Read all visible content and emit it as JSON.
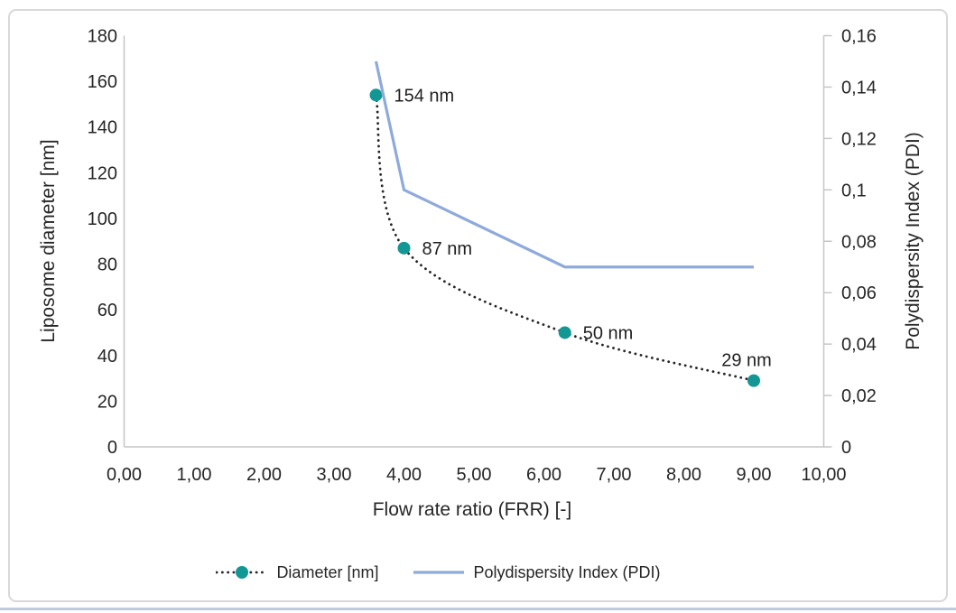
{
  "figure": {
    "background": "#FFFFFF",
    "border_color": "#D8D8D8",
    "bottom_divider_color": "#BECBDD"
  },
  "chart_data": {
    "type": "line",
    "title": "",
    "xlabel": "Flow rate ratio (FRR) [-]",
    "ylabel_left": "Liposome diameter [nm]",
    "ylabel_right": "Polydispersity Index (PDI)",
    "x_range": [
      0,
      10
    ],
    "x_tick_labels": [
      "0,00",
      "1,00",
      "2,00",
      "3,00",
      "4,00",
      "5,00",
      "6,00",
      "7,00",
      "8,00",
      "9,00",
      "10,00"
    ],
    "y_left_range": [
      0,
      180
    ],
    "y_left_tick_labels": [
      "0",
      "20",
      "40",
      "60",
      "80",
      "100",
      "120",
      "140",
      "160",
      "180"
    ],
    "y_right_range": [
      0,
      0.16
    ],
    "y_right_tick_labels": [
      "0",
      "0,02",
      "0,04",
      "0,06",
      "0,08",
      "0,1",
      "0,12",
      "0,14",
      "0,16"
    ],
    "grid": false,
    "legend_position": "bottom",
    "axis_color": "#C6C6C6",
    "text_color": "#262626",
    "series": [
      {
        "name": "Diameter [nm]",
        "axis": "left",
        "line_style": "dotted",
        "smooth": true,
        "line_color": "#262626",
        "marker": "circle",
        "marker_color": "#129795",
        "points": [
          {
            "x": 3.6,
            "y": 154,
            "label": "154 nm",
            "label_pos": "right"
          },
          {
            "x": 4.0,
            "y": 87,
            "label": "87 nm",
            "label_pos": "right"
          },
          {
            "x": 6.3,
            "y": 50,
            "label": "50 nm",
            "label_pos": "right"
          },
          {
            "x": 9.0,
            "y": 29,
            "label": "29 nm",
            "label_pos": "above-left"
          }
        ]
      },
      {
        "name": "Polydispersity Index (PDI)",
        "axis": "right",
        "line_style": "solid",
        "smooth": false,
        "line_color": "#8EAADB",
        "marker": "none",
        "points": [
          {
            "x": 3.6,
            "y": 0.15
          },
          {
            "x": 4.0,
            "y": 0.1
          },
          {
            "x": 6.3,
            "y": 0.07
          },
          {
            "x": 9.0,
            "y": 0.07
          }
        ]
      }
    ]
  }
}
